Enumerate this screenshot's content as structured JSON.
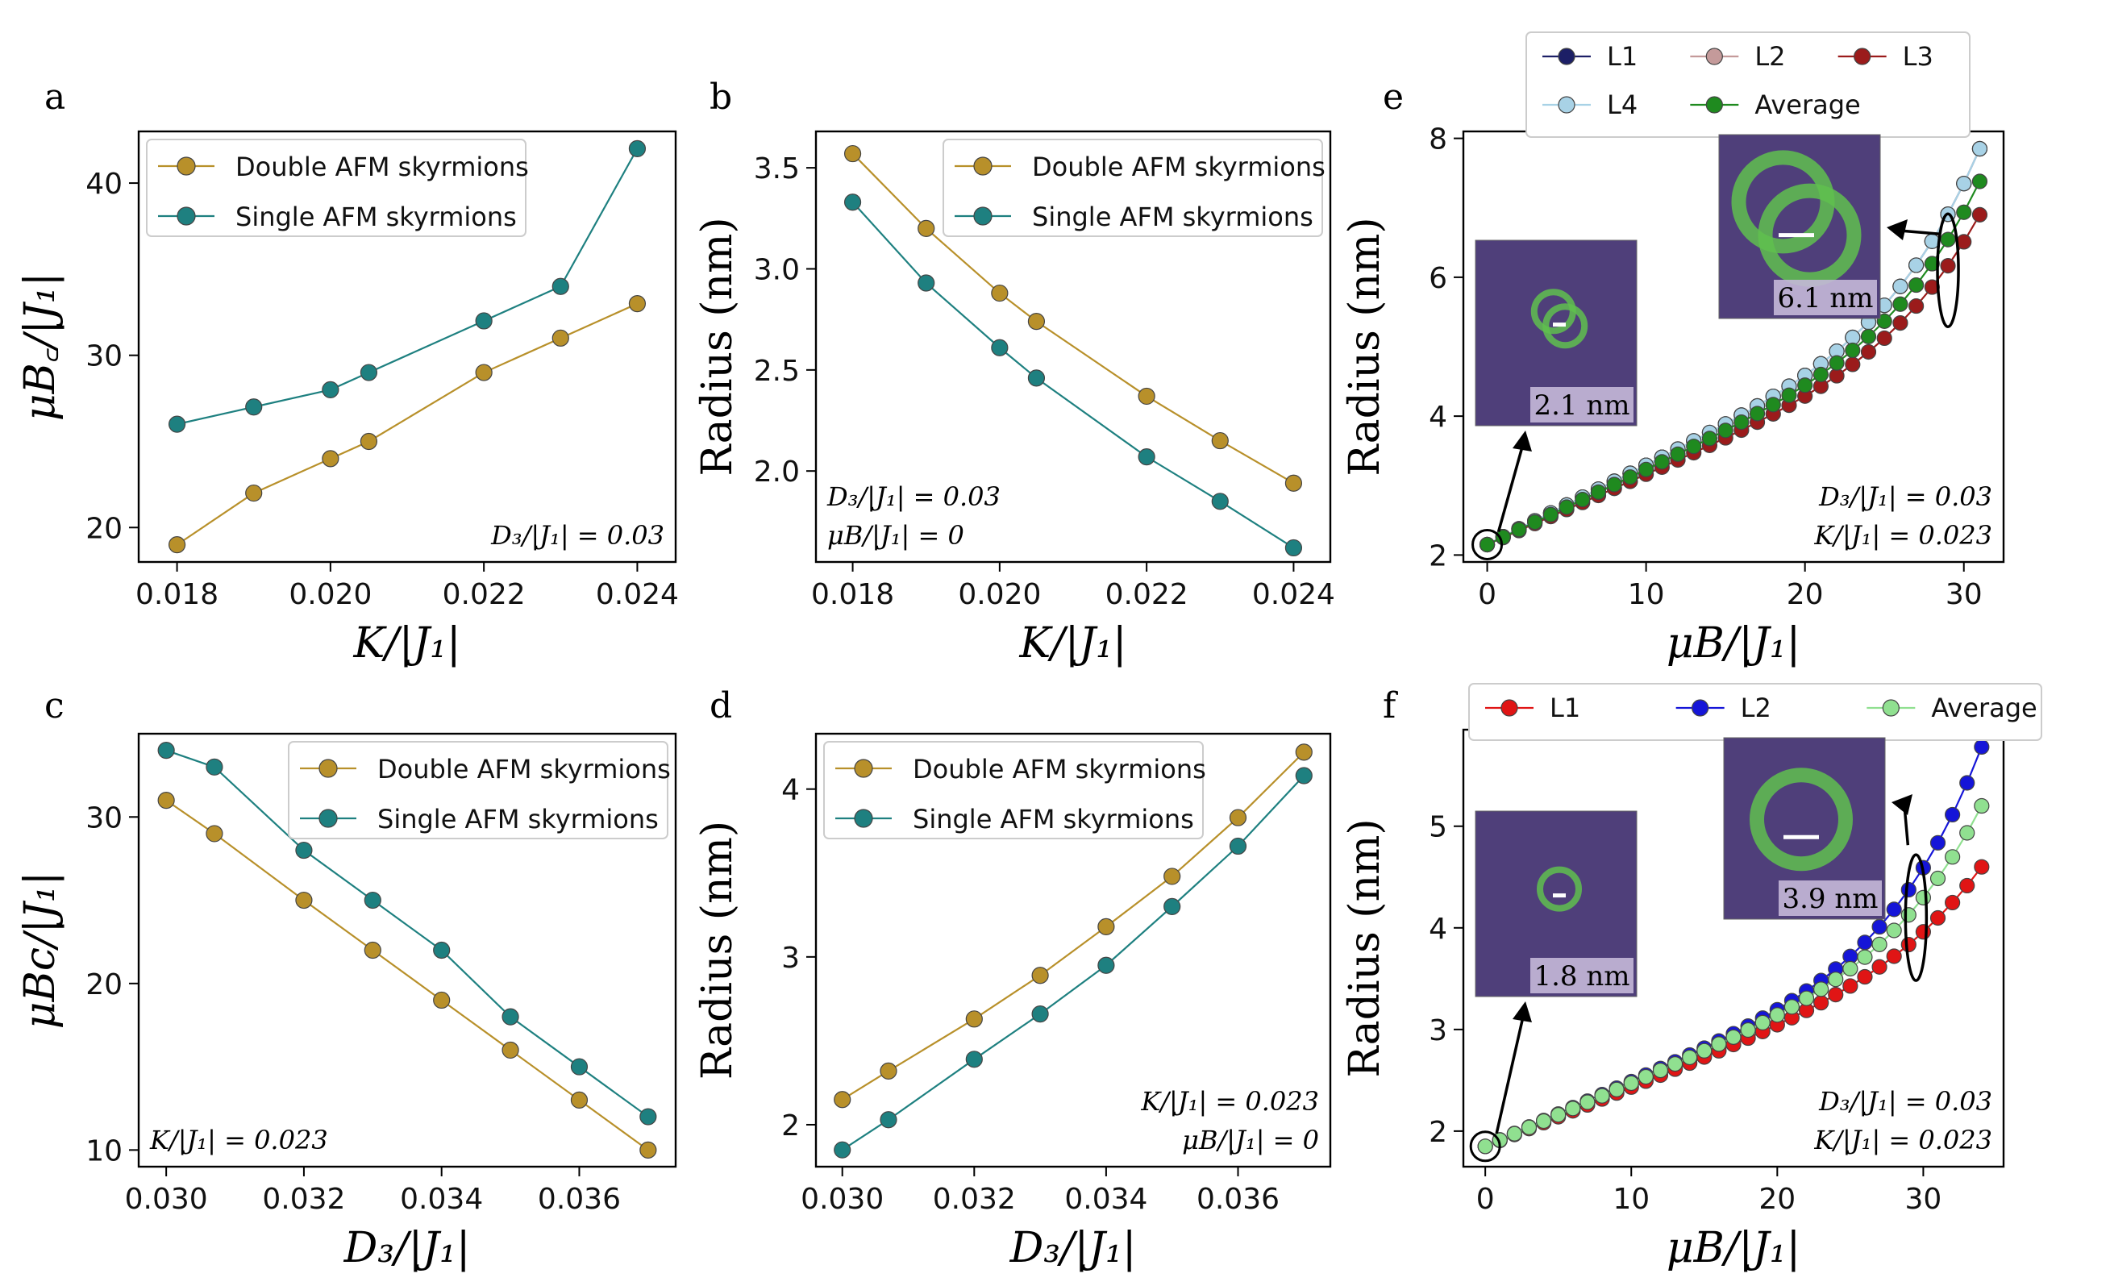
{
  "chart_data": [
    {
      "id": "a",
      "type": "line",
      "panel_label": "a",
      "xlabel": "K/|J₁|",
      "ylabel": "μB꜀/|J₁|",
      "xlim": [
        0.0175,
        0.0245
      ],
      "ylim": [
        18,
        43
      ],
      "xticks": [
        "0.018",
        "0.020",
        "0.022",
        "0.024"
      ],
      "xtick_values": [
        0.018,
        0.02,
        0.022,
        0.024
      ],
      "yticks": [
        "20",
        "30",
        "40"
      ],
      "ytick_values": [
        20,
        30,
        40
      ],
      "legend_pos": "top-left",
      "series": [
        {
          "name": "Double AFM skyrmions",
          "color": "#b8902a",
          "x": [
            0.018,
            0.019,
            0.02,
            0.0205,
            0.022,
            0.023,
            0.024
          ],
          "values": [
            19,
            22,
            24,
            25,
            29,
            31,
            33
          ]
        },
        {
          "name": "Single AFM skyrmions",
          "color": "#1e8080",
          "x": [
            0.018,
            0.019,
            0.02,
            0.0205,
            0.022,
            0.023,
            0.024
          ],
          "values": [
            26,
            27,
            28,
            29,
            32,
            34,
            42
          ]
        }
      ],
      "annotations": [
        "D₃/|J₁| = 0.03"
      ],
      "ann_pos": "bottom-right"
    },
    {
      "id": "b",
      "type": "line",
      "panel_label": "b",
      "xlabel": "K/|J₁|",
      "ylabel": "Radius (nm)",
      "xlim": [
        0.0175,
        0.0245
      ],
      "ylim": [
        1.55,
        3.68
      ],
      "xticks": [
        "0.018",
        "0.020",
        "0.022",
        "0.024"
      ],
      "xtick_values": [
        0.018,
        0.02,
        0.022,
        0.024
      ],
      "yticks": [
        "2.0",
        "2.5",
        "3.0",
        "3.5"
      ],
      "ytick_values": [
        2.0,
        2.5,
        3.0,
        3.5
      ],
      "legend_pos": "top-right",
      "series": [
        {
          "name": "Double AFM skyrmions",
          "color": "#b8902a",
          "x": [
            0.018,
            0.019,
            0.02,
            0.0205,
            0.022,
            0.023,
            0.024
          ],
          "values": [
            3.57,
            3.2,
            2.88,
            2.74,
            2.37,
            2.15,
            1.94
          ]
        },
        {
          "name": "Single AFM skyrmions",
          "color": "#1e8080",
          "x": [
            0.018,
            0.019,
            0.02,
            0.0205,
            0.022,
            0.023,
            0.024
          ],
          "values": [
            3.33,
            2.93,
            2.61,
            2.46,
            2.07,
            1.85,
            1.62
          ]
        }
      ],
      "annotations": [
        "D₃/|J₁| = 0.03",
        "μB/|J₁| = 0"
      ],
      "ann_pos": "bottom-left"
    },
    {
      "id": "c",
      "type": "line",
      "panel_label": "c",
      "xlabel": "D₃/|J₁|",
      "ylabel": "μBc/|J₁|",
      "xlim": [
        0.0296,
        0.0374
      ],
      "ylim": [
        9,
        35
      ],
      "xticks": [
        "0.030",
        "0.032",
        "0.034",
        "0.036"
      ],
      "xtick_values": [
        0.03,
        0.032,
        0.034,
        0.036
      ],
      "yticks": [
        "10",
        "20",
        "30"
      ],
      "ytick_values": [
        10,
        20,
        30
      ],
      "legend_pos": "top-right",
      "series": [
        {
          "name": "Double AFM skyrmions",
          "color": "#b8902a",
          "x": [
            0.03,
            0.0307,
            0.032,
            0.033,
            0.034,
            0.035,
            0.036,
            0.037
          ],
          "values": [
            31,
            29,
            25,
            22,
            19,
            16,
            13,
            10
          ]
        },
        {
          "name": "Single AFM skyrmions",
          "color": "#1e8080",
          "x": [
            0.03,
            0.0307,
            0.032,
            0.033,
            0.034,
            0.035,
            0.036,
            0.037
          ],
          "values": [
            34,
            33,
            28,
            25,
            22,
            18,
            15,
            12
          ]
        }
      ],
      "annotations": [
        "K/|J₁| = 0.023"
      ],
      "ann_pos": "bottom-left"
    },
    {
      "id": "d",
      "type": "line",
      "panel_label": "d",
      "xlabel": "D₃/|J₁|",
      "ylabel": "Radius (nm)",
      "xlim": [
        0.0296,
        0.0374
      ],
      "ylim": [
        1.75,
        4.33
      ],
      "xticks": [
        "0.030",
        "0.032",
        "0.034",
        "0.036"
      ],
      "xtick_values": [
        0.03,
        0.032,
        0.034,
        0.036
      ],
      "yticks": [
        "2",
        "3",
        "4"
      ],
      "ytick_values": [
        2,
        3,
        4
      ],
      "legend_pos": "top-left",
      "series": [
        {
          "name": "Double AFM skyrmions",
          "color": "#b8902a",
          "x": [
            0.03,
            0.0307,
            0.032,
            0.033,
            0.034,
            0.035,
            0.036,
            0.037
          ],
          "values": [
            2.15,
            2.32,
            2.63,
            2.89,
            3.18,
            3.48,
            3.83,
            4.22
          ]
        },
        {
          "name": "Single AFM skyrmions",
          "color": "#1e8080",
          "x": [
            0.03,
            0.0307,
            0.032,
            0.033,
            0.034,
            0.035,
            0.036,
            0.037
          ],
          "values": [
            1.85,
            2.03,
            2.39,
            2.66,
            2.95,
            3.3,
            3.66,
            4.08
          ]
        }
      ],
      "annotations": [
        "K/|J₁| = 0.023",
        "μB/|J₁| = 0"
      ],
      "ann_pos": "bottom-right"
    },
    {
      "id": "e",
      "type": "line",
      "panel_label": "e",
      "xlabel": "μB/|J₁|",
      "ylabel": "Radius (nm)",
      "xlim": [
        -1.5,
        32.5
      ],
      "ylim": [
        1.9,
        8.1
      ],
      "xticks": [
        "0",
        "10",
        "20",
        "30"
      ],
      "xtick_values": [
        0,
        10,
        20,
        30
      ],
      "yticks": [
        "2",
        "4",
        "6",
        "8"
      ],
      "ytick_values": [
        2,
        4,
        6,
        8
      ],
      "legend_pos": "above",
      "legend_cols": 3,
      "inset_small_label": "2.1 nm",
      "inset_large_label": "6.1 nm",
      "series": [
        {
          "name": "L1",
          "color": "#1c1f66",
          "start": 2.15,
          "end": 7.85,
          "n": 32,
          "shape": 0.62
        },
        {
          "name": "L2",
          "color": "#c49a9a",
          "start": 2.15,
          "end": 7.85,
          "n": 32,
          "shape": 0.62
        },
        {
          "name": "L3",
          "color": "#9b1b1b",
          "start": 2.15,
          "end": 6.9,
          "n": 32,
          "shape": 0.66
        },
        {
          "name": "L4",
          "color": "#a8d2e6",
          "start": 2.15,
          "end": 7.85,
          "n": 32,
          "shape": 0.62
        },
        {
          "name": "Average",
          "color": "#1f8a1f",
          "start": 2.15,
          "end": 7.38,
          "n": 32,
          "shape": 0.64
        }
      ],
      "annotations": [
        "D₃/|J₁| = 0.03",
        "K/|J₁| = 0.023"
      ],
      "ann_pos": "bottom-right"
    },
    {
      "id": "f",
      "type": "line",
      "panel_label": "f",
      "xlabel": "μB/|J₁|",
      "ylabel": "Radius (nm)",
      "xlim": [
        -1.5,
        35.5
      ],
      "ylim": [
        1.65,
        5.95
      ],
      "xticks": [
        "0",
        "10",
        "20",
        "30"
      ],
      "xtick_values": [
        0,
        10,
        20,
        30
      ],
      "yticks": [
        "2",
        "3",
        "4",
        "5"
      ],
      "ytick_values": [
        2,
        3,
        4,
        5
      ],
      "legend_pos": "above",
      "legend_cols": 3,
      "inset_small_label": "1.8 nm",
      "inset_large_label": "3.9 nm",
      "series": [
        {
          "name": "L1",
          "color": "#e01515",
          "start": 1.85,
          "end": 4.6,
          "n": 35,
          "shape": 0.72
        },
        {
          "name": "L2",
          "color": "#1515d8",
          "start": 1.85,
          "end": 5.78,
          "n": 35,
          "shape": 0.55
        },
        {
          "name": "Average",
          "color": "#90e090",
          "start": 1.85,
          "end": 5.2,
          "n": 35,
          "shape": 0.63
        }
      ],
      "annotations": [
        "D₃/|J₁| = 0.03",
        "K/|J₁| = 0.023"
      ],
      "ann_pos": "bottom-right"
    }
  ]
}
